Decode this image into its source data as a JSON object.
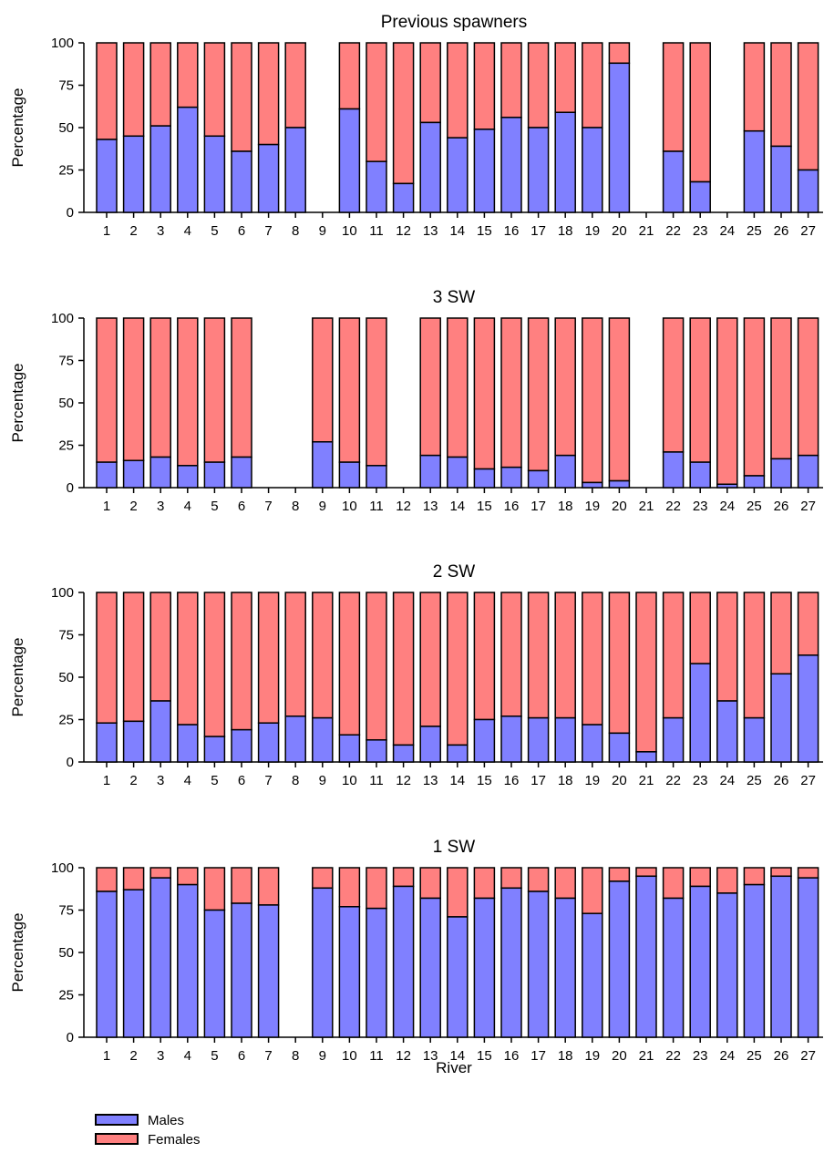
{
  "colors": {
    "males": "#8080ff",
    "females": "#ff8080",
    "stroke": "#000000"
  },
  "figure": {
    "xlabel": "River",
    "legend": {
      "placement": "bottom-left",
      "males": "Males",
      "females": "Females"
    }
  },
  "chart_data": [
    {
      "type": "bar",
      "stacked": true,
      "title": "Previous spawners",
      "ylabel": "Percentage",
      "xlabel": "River",
      "ylim": [
        0,
        100
      ],
      "yticks": [
        0,
        25,
        50,
        75,
        100
      ],
      "categories": [
        "1",
        "2",
        "3",
        "4",
        "5",
        "6",
        "7",
        "8",
        "9",
        "10",
        "11",
        "12",
        "13",
        "14",
        "15",
        "16",
        "17",
        "18",
        "19",
        "20",
        "21",
        "22",
        "23",
        "24",
        "25",
        "26",
        "27"
      ],
      "series": [
        {
          "name": "Males",
          "values": [
            43,
            45,
            51,
            62,
            45,
            36,
            40,
            50,
            null,
            61,
            30,
            17,
            53,
            44,
            49,
            56,
            50,
            59,
            50,
            88,
            null,
            36,
            18,
            null,
            48,
            39,
            25
          ]
        },
        {
          "name": "Females",
          "values": [
            57,
            55,
            49,
            38,
            55,
            64,
            60,
            50,
            null,
            39,
            70,
            83,
            47,
            56,
            51,
            44,
            50,
            41,
            50,
            12,
            null,
            64,
            82,
            null,
            52,
            61,
            75
          ]
        }
      ]
    },
    {
      "type": "bar",
      "stacked": true,
      "title": "3 SW",
      "ylabel": "Percentage",
      "xlabel": "River",
      "ylim": [
        0,
        100
      ],
      "yticks": [
        0,
        25,
        50,
        75,
        100
      ],
      "categories": [
        "1",
        "2",
        "3",
        "4",
        "5",
        "6",
        "7",
        "8",
        "9",
        "10",
        "11",
        "12",
        "13",
        "14",
        "15",
        "16",
        "17",
        "18",
        "19",
        "20",
        "21",
        "22",
        "23",
        "24",
        "25",
        "26",
        "27"
      ],
      "series": [
        {
          "name": "Males",
          "values": [
            15,
            16,
            18,
            13,
            15,
            18,
            null,
            null,
            27,
            15,
            13,
            null,
            19,
            18,
            11,
            12,
            10,
            19,
            3,
            4,
            null,
            21,
            15,
            2,
            7,
            17,
            19
          ]
        },
        {
          "name": "Females",
          "values": [
            85,
            84,
            82,
            87,
            85,
            82,
            null,
            null,
            73,
            85,
            87,
            null,
            81,
            82,
            89,
            88,
            90,
            81,
            97,
            96,
            null,
            79,
            85,
            98,
            93,
            83,
            81
          ]
        }
      ]
    },
    {
      "type": "bar",
      "stacked": true,
      "title": "2 SW",
      "ylabel": "Percentage",
      "xlabel": "River",
      "ylim": [
        0,
        100
      ],
      "yticks": [
        0,
        25,
        50,
        75,
        100
      ],
      "categories": [
        "1",
        "2",
        "3",
        "4",
        "5",
        "6",
        "7",
        "8",
        "9",
        "10",
        "11",
        "12",
        "13",
        "14",
        "15",
        "16",
        "17",
        "18",
        "19",
        "20",
        "21",
        "22",
        "23",
        "24",
        "25",
        "26",
        "27"
      ],
      "series": [
        {
          "name": "Males",
          "values": [
            23,
            24,
            36,
            22,
            15,
            19,
            23,
            27,
            26,
            16,
            13,
            10,
            21,
            10,
            25,
            27,
            26,
            26,
            22,
            17,
            6,
            26,
            58,
            36,
            26,
            52,
            63
          ]
        },
        {
          "name": "Females",
          "values": [
            77,
            76,
            64,
            78,
            85,
            81,
            77,
            73,
            74,
            84,
            87,
            90,
            79,
            90,
            75,
            73,
            74,
            74,
            78,
            83,
            94,
            74,
            42,
            64,
            74,
            48,
            37
          ]
        }
      ]
    },
    {
      "type": "bar",
      "stacked": true,
      "title": "1 SW",
      "ylabel": "Percentage",
      "xlabel": "River",
      "ylim": [
        0,
        100
      ],
      "yticks": [
        0,
        25,
        50,
        75,
        100
      ],
      "categories": [
        "1",
        "2",
        "3",
        "4",
        "5",
        "6",
        "7",
        "8",
        "9",
        "10",
        "11",
        "12",
        "13",
        "14",
        "15",
        "16",
        "17",
        "18",
        "19",
        "20",
        "21",
        "22",
        "23",
        "24",
        "25",
        "26",
        "27"
      ],
      "series": [
        {
          "name": "Males",
          "values": [
            86,
            87,
            94,
            90,
            75,
            79,
            78,
            null,
            88,
            77,
            76,
            89,
            82,
            71,
            82,
            88,
            86,
            82,
            73,
            92,
            95,
            82,
            89,
            85,
            90,
            95,
            94
          ]
        },
        {
          "name": "Females",
          "values": [
            14,
            13,
            6,
            10,
            25,
            21,
            22,
            null,
            12,
            23,
            24,
            11,
            18,
            29,
            18,
            12,
            14,
            18,
            27,
            8,
            5,
            18,
            11,
            15,
            10,
            5,
            6
          ]
        }
      ]
    }
  ]
}
